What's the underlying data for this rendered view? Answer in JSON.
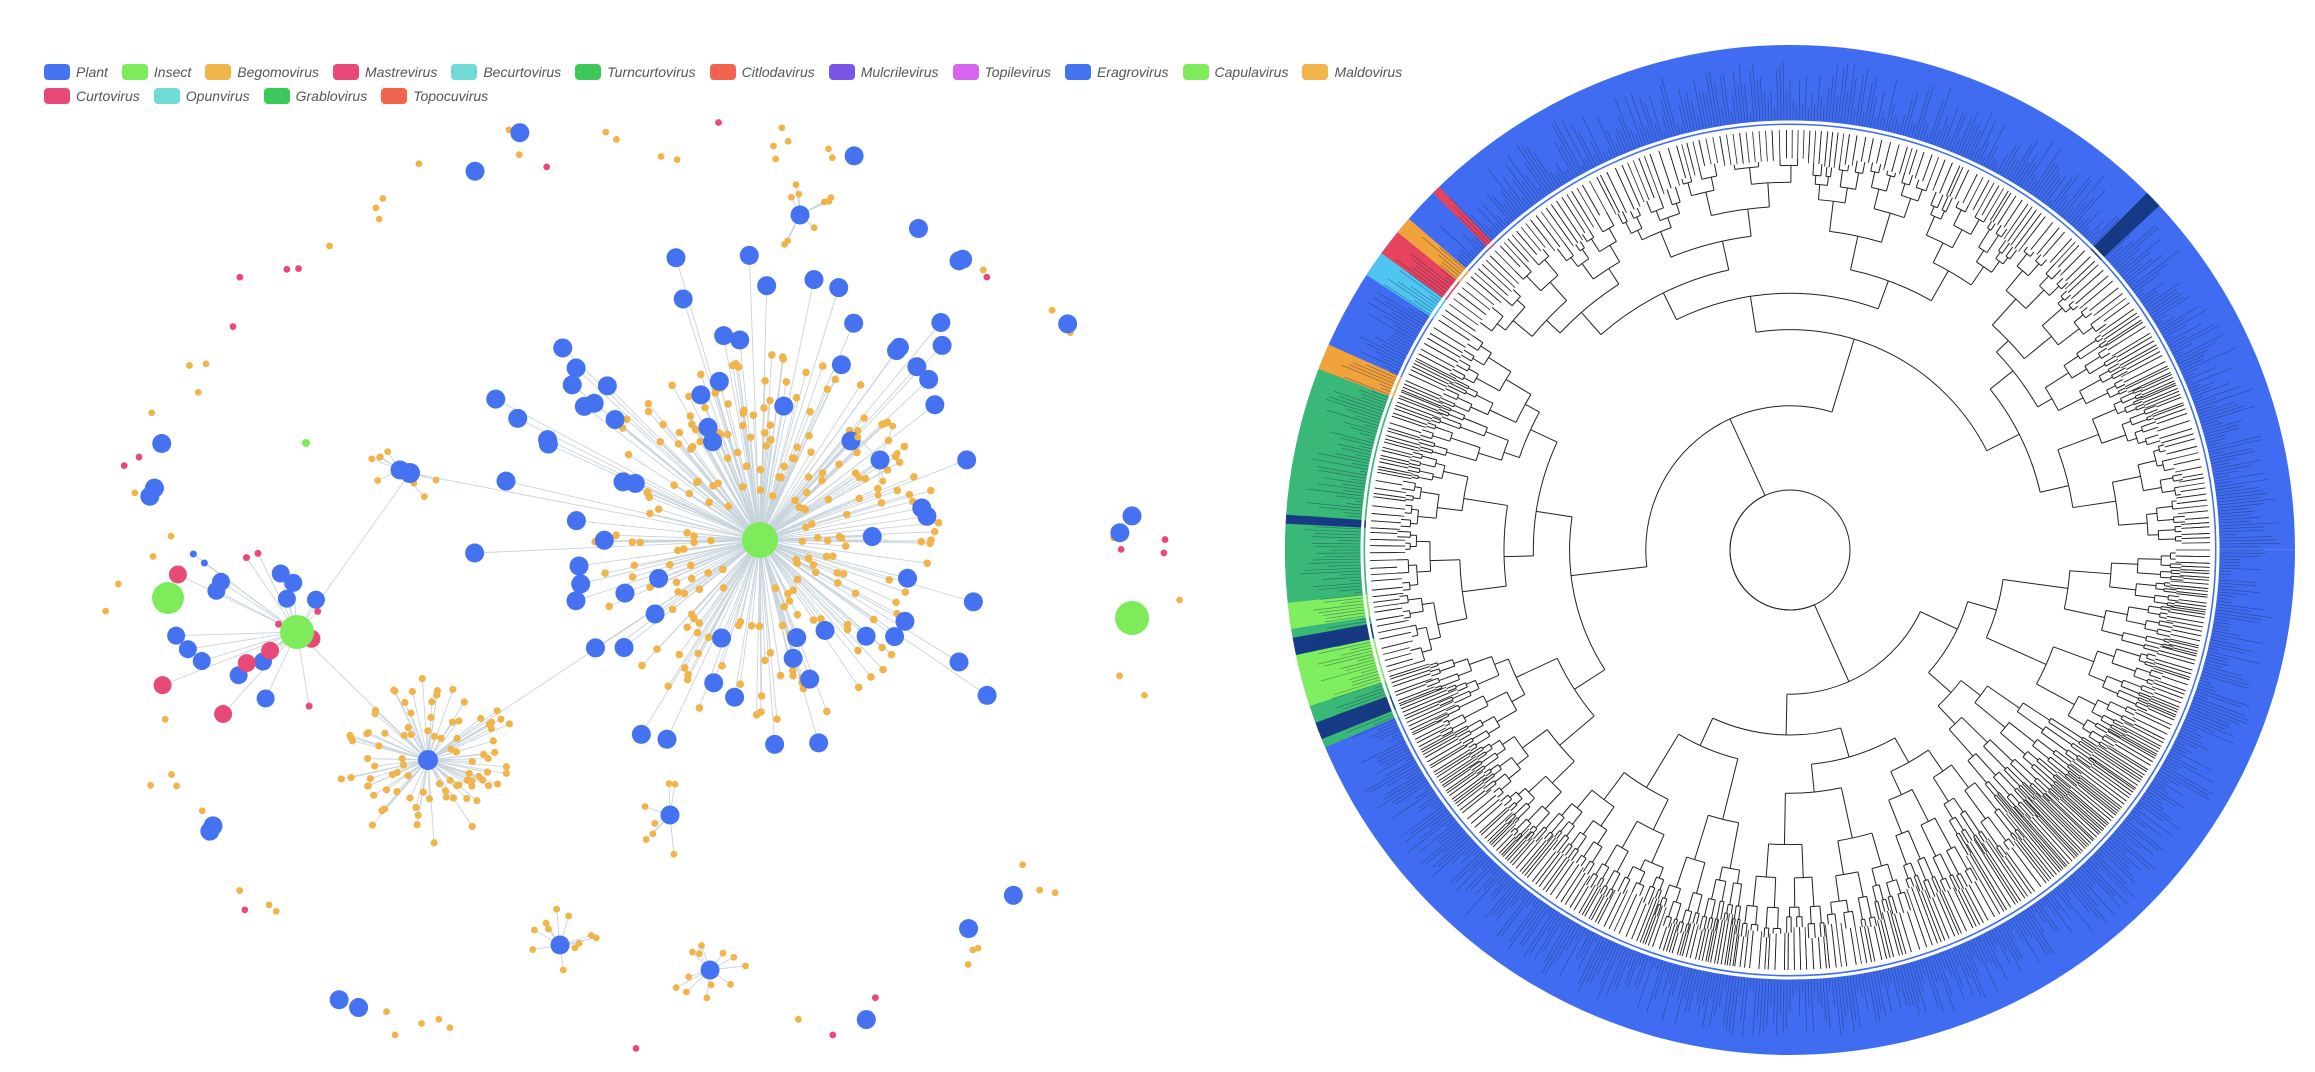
{
  "legend": {
    "items": [
      {
        "label": "Plant",
        "color": "#4472f0"
      },
      {
        "label": "Insect",
        "color": "#7eec5a"
      },
      {
        "label": "Begomovirus",
        "color": "#f0b44a"
      },
      {
        "label": "Mastrevirus",
        "color": "#e84a78"
      },
      {
        "label": "Becurtovirus",
        "color": "#6fdad6"
      },
      {
        "label": "Turncurtovirus",
        "color": "#3ec75a"
      },
      {
        "label": "Citlodavirus",
        "color": "#f06450"
      },
      {
        "label": "Mulcrilevirus",
        "color": "#7a55e8"
      },
      {
        "label": "Topilevirus",
        "color": "#d465ee"
      },
      {
        "label": "Eragrovirus",
        "color": "#4472f0"
      },
      {
        "label": "Capulavirus",
        "color": "#7eec5a"
      },
      {
        "label": "Maldovirus",
        "color": "#f0b44a"
      },
      {
        "label": "Curtovirus",
        "color": "#e84a78"
      },
      {
        "label": "Opunvirus",
        "color": "#6fdad6"
      },
      {
        "label": "Grablovirus",
        "color": "#3ec75a"
      },
      {
        "label": "Topocuvirus",
        "color": "#f06450"
      }
    ]
  },
  "colors": {
    "plant": "#4472f0",
    "insect": "#7eec5a",
    "begomovirus": "#f0b44a",
    "mastrevirus": "#e84a78",
    "edge": "#c8d4dc",
    "tree_ring": "#3f6cf0",
    "tree_ring_dark": "#173a86",
    "tree_green": "#39b877",
    "tree_lime": "#7fef60",
    "tree_orange": "#f2a23a",
    "tree_red": "#e8435e",
    "tree_cyan": "#4fc6f2",
    "branch": "#222222"
  }
}
